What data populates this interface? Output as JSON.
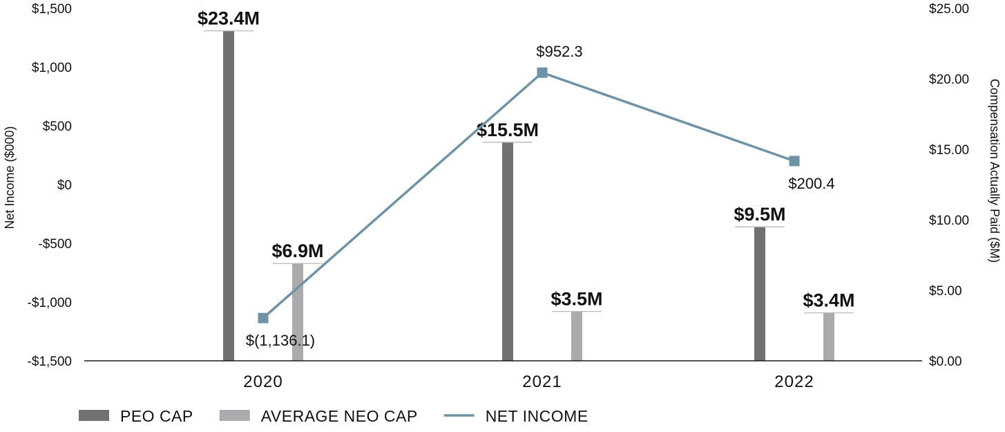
{
  "chart_data": {
    "type": "bar",
    "categories": [
      "2020",
      "2021",
      "2022"
    ],
    "left_axis": {
      "title": "Net Income ($000)",
      "range": [
        -1500,
        1500
      ],
      "ticks": [
        1500,
        1000,
        500,
        0,
        -500,
        -1000,
        -1500
      ],
      "tick_labels": [
        "$1,500",
        "$1,000",
        "$500",
        "$0",
        "-$500",
        "-$1,000",
        "-$1,500"
      ]
    },
    "right_axis": {
      "title": "Compensation Actually Paid ($M)",
      "range": [
        0,
        25
      ],
      "ticks": [
        25,
        20,
        15,
        10,
        5,
        0
      ],
      "tick_labels": [
        "$25.00",
        "$20.00",
        "$15.00",
        "$10.00",
        "$5.00",
        "$0.00"
      ]
    },
    "series": [
      {
        "name": "PEO CAP",
        "kind": "bar",
        "axis": "right",
        "color": "#717174",
        "values": [
          23.4,
          15.5,
          9.5
        ],
        "labels": [
          "$23.4M",
          "$15.5M",
          "$9.5M"
        ]
      },
      {
        "name": "AVERAGE NEO CAP",
        "kind": "bar",
        "axis": "right",
        "color": "#abaaac",
        "values": [
          6.9,
          3.5,
          3.4
        ],
        "labels": [
          "$6.9M",
          "$3.5M",
          "$3.4M"
        ]
      },
      {
        "name": "NET INCOME",
        "kind": "line",
        "axis": "left",
        "color": "#6e93a6",
        "values": [
          -1136.1,
          952.3,
          200.4
        ],
        "labels": [
          "$(1,136.1)",
          "$952.3",
          "$200.4"
        ]
      }
    ],
    "grid": false,
    "legend_position": "bottom-left"
  }
}
